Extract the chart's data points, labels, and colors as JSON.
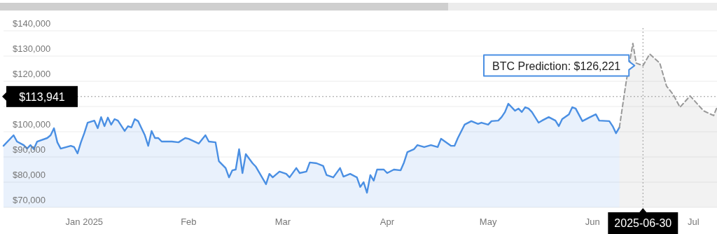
{
  "chart_data": {
    "type": "area",
    "xlim": [
      "2024-12-22",
      "2025-07-22"
    ],
    "xticks": [
      {
        "value": "2025-01-15",
        "label": "Jan 2025"
      },
      {
        "value": "2025-02-15",
        "label": "Feb"
      },
      {
        "value": "2025-03-15",
        "label": "Mar"
      },
      {
        "value": "2025-04-15",
        "label": "Apr"
      },
      {
        "value": "2025-05-15",
        "label": "May"
      },
      {
        "value": "2025-06-15",
        "label": "Jun"
      },
      {
        "value": "2025-07-15",
        "label": "Jul"
      }
    ],
    "ylim": [
      70000,
      140000
    ],
    "yticks": [
      {
        "value": 70000,
        "label": "$70,000"
      },
      {
        "value": 80000,
        "label": "$80,000"
      },
      {
        "value": 90000,
        "label": "$90,000"
      },
      {
        "value": 100000,
        "label": "$100,000"
      },
      {
        "value": 110000,
        "label": null
      },
      {
        "value": 120000,
        "label": "$120,000"
      },
      {
        "value": 130000,
        "label": "$130,000"
      },
      {
        "value": 140000,
        "label": "$140,000"
      }
    ],
    "grid": "y",
    "series": [
      {
        "type": "area",
        "color": "#4a8fe3",
        "line_style": "solid",
        "x": [
          "2024-12-22",
          "2024-12-25",
          "2024-12-26",
          "2024-12-28",
          "2024-12-29",
          "2024-12-30",
          "2024-12-31",
          "2025-01-01",
          "2025-01-04",
          "2025-01-05",
          "2025-01-06",
          "2025-01-07",
          "2025-01-08",
          "2025-01-11",
          "2025-01-12",
          "2025-01-13",
          "2025-01-14",
          "2025-01-15",
          "2025-01-16",
          "2025-01-18",
          "2025-01-19",
          "2025-01-20",
          "2025-01-21",
          "2025-01-22",
          "2025-01-23",
          "2025-01-24",
          "2025-01-25",
          "2025-01-27",
          "2025-01-28",
          "2025-01-29",
          "2025-01-30",
          "2025-01-31",
          "2025-02-01",
          "2025-02-02",
          "2025-02-03",
          "2025-02-04",
          "2025-02-05",
          "2025-02-06",
          "2025-02-07",
          "2025-02-10",
          "2025-02-12",
          "2025-02-14",
          "2025-02-15",
          "2025-02-18",
          "2025-02-20",
          "2025-02-21",
          "2025-02-23",
          "2025-02-24",
          "2025-02-26",
          "2025-02-27",
          "2025-02-28",
          "2025-03-01",
          "2025-03-02",
          "2025-03-03",
          "2025-03-04",
          "2025-03-06",
          "2025-03-07",
          "2025-03-10",
          "2025-03-11",
          "2025-03-12",
          "2025-03-14",
          "2025-03-16",
          "2025-03-17",
          "2025-03-19",
          "2025-03-20",
          "2025-03-22",
          "2025-03-23",
          "2025-03-25",
          "2025-03-27",
          "2025-03-28",
          "2025-03-30",
          "2025-04-01",
          "2025-04-02",
          "2025-04-04",
          "2025-04-06",
          "2025-04-07",
          "2025-04-08",
          "2025-04-09",
          "2025-04-10",
          "2025-04-11",
          "2025-04-12",
          "2025-04-14",
          "2025-04-15",
          "2025-04-17",
          "2025-04-19",
          "2025-04-20",
          "2025-04-21",
          "2025-04-23",
          "2025-04-24",
          "2025-04-26",
          "2025-04-28",
          "2025-04-30",
          "2025-05-01",
          "2025-05-04",
          "2025-05-05",
          "2025-05-06",
          "2025-05-08",
          "2025-05-10",
          "2025-05-12",
          "2025-05-13",
          "2025-05-15",
          "2025-05-16",
          "2025-05-18",
          "2025-05-19",
          "2025-05-20",
          "2025-05-21",
          "2025-05-23",
          "2025-05-24",
          "2025-05-25",
          "2025-05-26",
          "2025-05-27",
          "2025-05-28",
          "2025-05-30",
          "2025-05-31",
          "2025-06-02",
          "2025-06-04",
          "2025-06-05",
          "2025-06-06",
          "2025-06-08",
          "2025-06-09",
          "2025-06-10",
          "2025-06-12",
          "2025-06-14",
          "2025-06-16",
          "2025-06-17",
          "2025-06-20",
          "2025-06-21",
          "2025-06-22",
          "2025-06-23"
        ],
        "values": [
          94400,
          98600,
          96100,
          94700,
          93300,
          94700,
          93100,
          96100,
          97500,
          98600,
          101400,
          95800,
          93300,
          94400,
          93900,
          91400,
          95800,
          99400,
          103600,
          104400,
          101400,
          105800,
          102200,
          105600,
          102800,
          105000,
          104400,
          100300,
          102200,
          101700,
          105000,
          104200,
          101400,
          98600,
          94400,
          100300,
          97500,
          97500,
          96100,
          96100,
          95800,
          97500,
          97200,
          95300,
          98600,
          96100,
          95800,
          88300,
          85600,
          81900,
          84700,
          85000,
          93100,
          83600,
          91100,
          87500,
          86100,
          79200,
          83300,
          81900,
          84200,
          83300,
          81900,
          85600,
          83600,
          84200,
          87800,
          87500,
          86400,
          82800,
          81900,
          85600,
          82200,
          83300,
          81900,
          78100,
          80000,
          75800,
          82800,
          80600,
          85000,
          85000,
          83600,
          85000,
          84700,
          87800,
          91900,
          93100,
          94700,
          93900,
          94700,
          93900,
          97200,
          94400,
          94400,
          97500,
          102800,
          104200,
          103100,
          103600,
          102800,
          104200,
          104400,
          105800,
          107800,
          111100,
          108300,
          109200,
          107800,
          109700,
          109200,
          107800,
          103600,
          104400,
          105800,
          104400,
          102200,
          105000,
          106900,
          109700,
          109200,
          104200,
          105600,
          106900,
          104400,
          104200,
          102200,
          99400,
          101700
        ]
      },
      {
        "type": "area",
        "color": "#999999",
        "line_style": "dashed",
        "x": [
          "2025-06-23",
          "2025-06-25",
          "2025-06-27",
          "2025-06-28",
          "2025-06-30",
          "2025-07-02",
          "2025-07-05",
          "2025-07-07",
          "2025-07-09",
          "2025-07-11",
          "2025-07-14",
          "2025-07-18",
          "2025-07-21",
          "2025-07-22"
        ],
        "values": [
          101700,
          119700,
          135000,
          127200,
          126200,
          130800,
          127200,
          118100,
          114700,
          109700,
          114200,
          108300,
          106400,
          109700
        ]
      }
    ],
    "ref_lines": [
      {
        "axis": "x",
        "value": "2025-06-30",
        "label": "2025-06-30",
        "line_style": "dotted"
      },
      {
        "axis": "y",
        "value": 113941,
        "label": "$113,941",
        "line_style": "dotted"
      }
    ],
    "annotations": [
      {
        "text": "BTC Prediction: $126,221",
        "x": "2025-06-30",
        "y": 126221
      }
    ]
  }
}
